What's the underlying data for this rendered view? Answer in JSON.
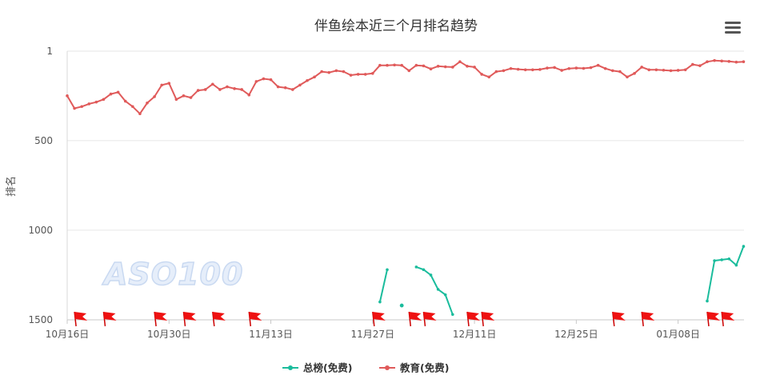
{
  "chart_data": {
    "type": "line",
    "title": "伴鱼绘本近三个月排名趋势",
    "ylabel": "排名",
    "xlabel": "",
    "y_reversed": true,
    "ylim": [
      1,
      1500
    ],
    "y_ticks": [
      1,
      500,
      1000,
      1500
    ],
    "x_range": [
      "2023-10-16",
      "2024-01-16"
    ],
    "x_ticks": [
      "10月16日",
      "10月30日",
      "11月13日",
      "11月27日",
      "12月11日",
      "12月25日",
      "01月08日"
    ],
    "x_tick_dates": [
      "2023-10-16",
      "2023-10-30",
      "2023-11-13",
      "2023-11-27",
      "2023-12-11",
      "2023-12-25",
      "2024-01-08"
    ],
    "grid": true,
    "legend_position": "bottom",
    "series": [
      {
        "name": "总榜(免费)",
        "color": "#1abc9c",
        "points": [
          [
            "2023-11-28",
            1400
          ],
          [
            "2023-11-29",
            1220
          ],
          null,
          [
            "2023-12-01",
            1420
          ],
          null,
          [
            "2023-12-03",
            1205
          ],
          [
            "2023-12-04",
            1220
          ],
          [
            "2023-12-05",
            1250
          ],
          [
            "2023-12-06",
            1330
          ],
          [
            "2023-12-07",
            1360
          ],
          [
            "2023-12-08",
            1470
          ],
          null,
          [
            "2024-01-12",
            1395
          ],
          [
            "2024-01-13",
            1170
          ],
          [
            "2024-01-14",
            1165
          ],
          [
            "2024-01-15",
            1160
          ],
          [
            "2024-01-16",
            1195
          ],
          [
            "2024-01-17",
            1090
          ]
        ]
      },
      {
        "name": "教育(免费)",
        "color": "#e05a5a",
        "points": [
          [
            "2023-10-16",
            250
          ],
          [
            "2023-10-17",
            320
          ],
          [
            "2023-10-18",
            310
          ],
          [
            "2023-10-19",
            295
          ],
          [
            "2023-10-20",
            285
          ],
          [
            "2023-10-21",
            270
          ],
          [
            "2023-10-22",
            240
          ],
          [
            "2023-10-23",
            230
          ],
          [
            "2023-10-24",
            280
          ],
          [
            "2023-10-25",
            310
          ],
          [
            "2023-10-26",
            350
          ],
          [
            "2023-10-27",
            290
          ],
          [
            "2023-10-28",
            255
          ],
          [
            "2023-10-29",
            190
          ],
          [
            "2023-10-30",
            180
          ],
          [
            "2023-10-31",
            270
          ],
          [
            "2023-11-01",
            250
          ],
          [
            "2023-11-02",
            260
          ],
          [
            "2023-11-03",
            220
          ],
          [
            "2023-11-04",
            215
          ],
          [
            "2023-11-05",
            185
          ],
          [
            "2023-11-06",
            215
          ],
          [
            "2023-11-07",
            200
          ],
          [
            "2023-11-08",
            210
          ],
          [
            "2023-11-09",
            215
          ],
          [
            "2023-11-10",
            245
          ],
          [
            "2023-11-11",
            170
          ],
          [
            "2023-11-12",
            155
          ],
          [
            "2023-11-13",
            160
          ],
          [
            "2023-11-14",
            200
          ],
          [
            "2023-11-15",
            205
          ],
          [
            "2023-11-16",
            215
          ],
          [
            "2023-11-17",
            190
          ],
          [
            "2023-11-18",
            165
          ],
          [
            "2023-11-19",
            145
          ],
          [
            "2023-11-20",
            115
          ],
          [
            "2023-11-21",
            120
          ],
          [
            "2023-11-22",
            110
          ],
          [
            "2023-11-23",
            115
          ],
          [
            "2023-11-24",
            135
          ],
          [
            "2023-11-25",
            130
          ],
          [
            "2023-11-26",
            130
          ],
          [
            "2023-11-27",
            125
          ],
          [
            "2023-11-28",
            80
          ],
          [
            "2023-11-29",
            80
          ],
          [
            "2023-11-30",
            78
          ],
          [
            "2023-12-01",
            80
          ],
          [
            "2023-12-02",
            110
          ],
          [
            "2023-12-03",
            80
          ],
          [
            "2023-12-04",
            83
          ],
          [
            "2023-12-05",
            100
          ],
          [
            "2023-12-06",
            85
          ],
          [
            "2023-12-07",
            88
          ],
          [
            "2023-12-08",
            90
          ],
          [
            "2023-12-09",
            60
          ],
          [
            "2023-12-10",
            85
          ],
          [
            "2023-12-11",
            90
          ],
          [
            "2023-12-12",
            130
          ],
          [
            "2023-12-13",
            145
          ],
          [
            "2023-12-14",
            115
          ],
          [
            "2023-12-15",
            110
          ],
          [
            "2023-12-16",
            98
          ],
          [
            "2023-12-17",
            102
          ],
          [
            "2023-12-18",
            105
          ],
          [
            "2023-12-19",
            105
          ],
          [
            "2023-12-20",
            103
          ],
          [
            "2023-12-21",
            95
          ],
          [
            "2023-12-22",
            92
          ],
          [
            "2023-12-23",
            108
          ],
          [
            "2023-12-24",
            98
          ],
          [
            "2023-12-25",
            95
          ],
          [
            "2023-12-26",
            97
          ],
          [
            "2023-12-27",
            93
          ],
          [
            "2023-12-28",
            80
          ],
          [
            "2023-12-29",
            98
          ],
          [
            "2023-12-30",
            110
          ],
          [
            "2023-12-31",
            115
          ],
          [
            "2024-01-01",
            145
          ],
          [
            "2024-01-02",
            125
          ],
          [
            "2024-01-03",
            90
          ],
          [
            "2024-01-04",
            105
          ],
          [
            "2024-01-05",
            105
          ],
          [
            "2024-01-06",
            107
          ],
          [
            "2024-01-07",
            110
          ],
          [
            "2024-01-08",
            108
          ],
          [
            "2024-01-09",
            105
          ],
          [
            "2024-01-10",
            75
          ],
          [
            "2024-01-11",
            82
          ],
          [
            "2024-01-12",
            60
          ],
          [
            "2024-01-13",
            53
          ],
          [
            "2024-01-14",
            56
          ],
          [
            "2024-01-15",
            58
          ],
          [
            "2024-01-16",
            62
          ],
          [
            "2024-01-17",
            60
          ]
        ]
      }
    ],
    "flag_dates": [
      "2023-10-17",
      "2023-10-21",
      "2023-10-28",
      "2023-11-01",
      "2023-11-05",
      "2023-11-10",
      "2023-11-27",
      "2023-12-02",
      "2023-12-04",
      "2023-12-10",
      "2023-12-12",
      "2023-12-30",
      "2024-01-03",
      "2024-01-12",
      "2024-01-14"
    ]
  },
  "watermark": "ASO100",
  "icons": {
    "menu": "hamburger-menu-icon",
    "flag": "flag-icon"
  }
}
